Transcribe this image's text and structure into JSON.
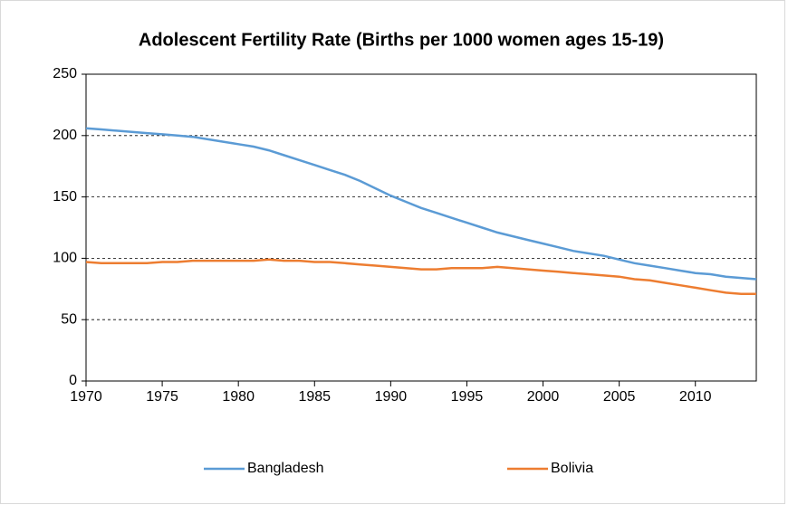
{
  "chart_data": {
    "type": "line",
    "title": "Adolescent Fertility Rate (Births per 1000 women ages 15-19)",
    "x": [
      1970,
      1971,
      1972,
      1973,
      1974,
      1975,
      1976,
      1977,
      1978,
      1979,
      1980,
      1981,
      1982,
      1983,
      1984,
      1985,
      1986,
      1987,
      1988,
      1989,
      1990,
      1991,
      1992,
      1993,
      1994,
      1995,
      1996,
      1997,
      1998,
      1999,
      2000,
      2001,
      2002,
      2003,
      2004,
      2005,
      2006,
      2007,
      2008,
      2009,
      2010,
      2011,
      2012,
      2013,
      2014
    ],
    "series": [
      {
        "name": "Bangladesh",
        "color": "#5b9bd5",
        "values": [
          206,
          205,
          204,
          203,
          202,
          201,
          200,
          199,
          197,
          195,
          193,
          191,
          188,
          184,
          180,
          176,
          172,
          168,
          163,
          157,
          151,
          146,
          141,
          137,
          133,
          129,
          125,
          121,
          118,
          115,
          112,
          109,
          106,
          104,
          102,
          99,
          96,
          94,
          92,
          90,
          88,
          87,
          85,
          84,
          83
        ]
      },
      {
        "name": "Bolivia",
        "color": "#ed7d31",
        "values": [
          97,
          96,
          96,
          96,
          96,
          97,
          97,
          98,
          98,
          98,
          98,
          98,
          99,
          98,
          98,
          97,
          97,
          96,
          95,
          94,
          93,
          92,
          91,
          91,
          92,
          92,
          92,
          93,
          92,
          91,
          90,
          89,
          88,
          87,
          86,
          85,
          83,
          82,
          80,
          78,
          76,
          74,
          72,
          71,
          71
        ]
      }
    ],
    "xlim": [
      1970,
      2014
    ],
    "xticks": [
      1970,
      1975,
      1980,
      1985,
      1990,
      1995,
      2000,
      2005,
      2010
    ],
    "ylim": [
      0,
      250
    ],
    "yticks": [
      0,
      50,
      100,
      150,
      200,
      250
    ],
    "grid": true,
    "legend": "bottom"
  }
}
